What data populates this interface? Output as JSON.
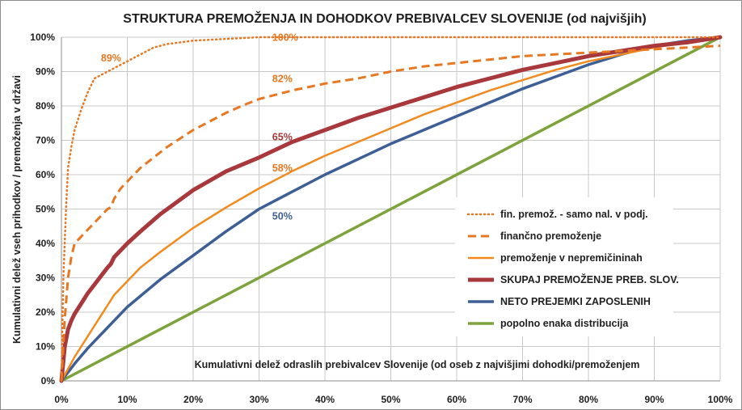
{
  "chart_data": {
    "type": "line",
    "title": "STRUKTURA PREMOŽENJA IN DOHODKOV PREBIVALCEV SLOVENIJE (od najvišjih)",
    "xlabel": "Kumulativni delež odraslih prebivalcev Slovenije (od oseb z najvišjimi  dohodki/premoženjem",
    "ylabel": "Kumulativni delež vseh prihodkov / premoženja v državi",
    "xlim": [
      0,
      100
    ],
    "ylim": [
      0,
      100
    ],
    "x_ticks": [
      "0%",
      "10%",
      "20%",
      "30%",
      "40%",
      "50%",
      "60%",
      "70%",
      "80%",
      "90%",
      "100%"
    ],
    "y_ticks": [
      "0%",
      "10%",
      "20%",
      "30%",
      "40%",
      "50%",
      "60%",
      "70%",
      "80%",
      "90%",
      "100%"
    ],
    "grid": true,
    "legend_position": "right",
    "series": [
      {
        "name": "fin. premož. - samo nal. v podj.",
        "color": "#E87722",
        "style": "dotted",
        "width": 2.5,
        "x": [
          0,
          0.3,
          0.7,
          1,
          1.5,
          2,
          3,
          4,
          5,
          6,
          8,
          10,
          12,
          14,
          16,
          18,
          20,
          25,
          30,
          40,
          60,
          80,
          100
        ],
        "y": [
          0,
          30,
          50,
          62,
          68,
          73,
          79,
          84,
          88,
          89,
          91,
          93,
          95,
          97,
          98,
          98.5,
          99,
          99.5,
          100,
          100,
          100,
          100,
          100
        ]
      },
      {
        "name": "finančno premoženje",
        "color": "#E87722",
        "style": "dashed",
        "width": 3,
        "x": [
          0,
          0.5,
          1,
          1.5,
          2,
          3,
          4,
          5,
          6,
          7,
          7.5,
          8,
          9,
          10,
          12,
          14,
          16,
          18,
          20,
          22,
          25,
          28,
          30,
          35,
          40,
          45,
          50,
          55,
          60,
          70,
          80,
          90,
          100
        ],
        "y": [
          0,
          18,
          30,
          36,
          40,
          42,
          44,
          46,
          48,
          50,
          50.5,
          53,
          56,
          58,
          62,
          65,
          68,
          70.5,
          73,
          75,
          78,
          80.5,
          82,
          84.5,
          86.5,
          88,
          90,
          91.5,
          92.5,
          94.5,
          95.5,
          96.5,
          97.5
        ]
      },
      {
        "name": "premoženje v nepremičininah",
        "color": "#F28A1E",
        "style": "solid",
        "width": 2.5,
        "x": [
          0,
          1,
          2,
          3,
          4,
          5,
          6,
          7,
          8,
          10,
          12,
          15,
          20,
          25,
          30,
          35,
          40,
          45,
          50,
          55,
          60,
          65,
          70,
          75,
          80,
          85,
          90,
          95,
          100
        ],
        "y": [
          0,
          3.5,
          7,
          10,
          13,
          16,
          19,
          22,
          25,
          29,
          33,
          37.5,
          44.5,
          50.5,
          56,
          61,
          65.5,
          69.5,
          73.5,
          77.5,
          81,
          84.5,
          87.5,
          90.5,
          93,
          95,
          97,
          98.5,
          100
        ]
      },
      {
        "name": "SKUPAJ PREMOŽENJE PREB. SLOV.",
        "color": "#A8383B",
        "style": "solid",
        "width": 5,
        "x": [
          0,
          0.5,
          1,
          1.5,
          2,
          3,
          4,
          5,
          6,
          7,
          7.5,
          8,
          10,
          12,
          15,
          20,
          25,
          30,
          35,
          40,
          45,
          50,
          55,
          60,
          65,
          70,
          75,
          80,
          85,
          90,
          95,
          100
        ],
        "y": [
          0,
          10,
          15,
          17.5,
          19.5,
          22.5,
          25.5,
          28,
          30.5,
          33,
          34,
          36,
          40,
          43.5,
          48.5,
          55.5,
          61,
          65,
          69.5,
          73,
          76.5,
          79.5,
          82.5,
          85.5,
          88,
          90.5,
          92.5,
          94.5,
          96,
          97.5,
          98.5,
          100
        ]
      },
      {
        "name": "NETO PREJEMKI ZAPOSLENIH",
        "color": "#3D5F95",
        "style": "solid",
        "width": 3.5,
        "x": [
          0,
          2,
          4,
          6,
          8,
          10,
          15,
          20,
          25,
          30,
          35,
          40,
          45,
          50,
          55,
          60,
          65,
          70,
          75,
          80,
          85,
          90,
          95,
          100
        ],
        "y": [
          0,
          5,
          9.5,
          13.5,
          17.5,
          21.5,
          29.5,
          36.5,
          43.5,
          50,
          55,
          60,
          64.5,
          69,
          73,
          77,
          81,
          85,
          88.5,
          92,
          95,
          97.5,
          99,
          100
        ]
      },
      {
        "name": "popolno enaka distribucija",
        "color": "#7EA33C",
        "style": "solid",
        "width": 3.5,
        "x": [
          0,
          100
        ],
        "y": [
          0,
          100
        ]
      }
    ],
    "annotations": [
      {
        "text": "89%",
        "x": 6,
        "y": 93,
        "color": "#E87722"
      },
      {
        "text": "100%",
        "x": 32,
        "y": 99,
        "color": "#E87722"
      },
      {
        "text": "82%",
        "x": 32,
        "y": 87,
        "color": "#E87722"
      },
      {
        "text": "65%",
        "x": 32,
        "y": 70,
        "color": "#A8383B"
      },
      {
        "text": "58%",
        "x": 32,
        "y": 61,
        "color": "#E87722"
      },
      {
        "text": "50%",
        "x": 32,
        "y": 47,
        "color": "#3D5F95"
      }
    ]
  }
}
